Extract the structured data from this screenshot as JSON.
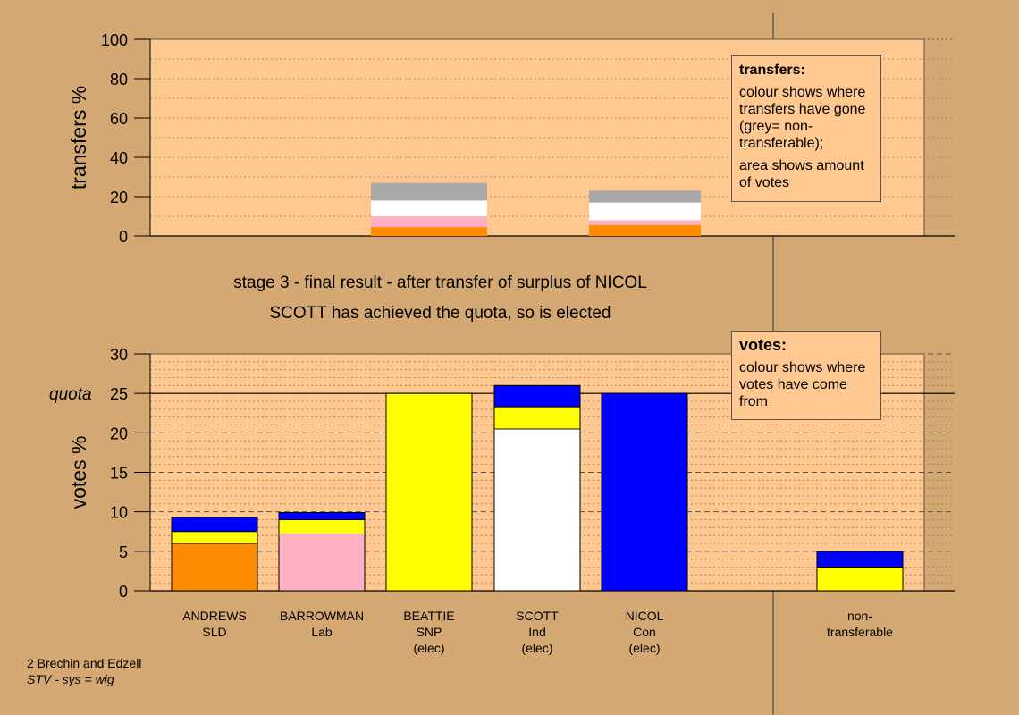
{
  "colors": {
    "background": "#d4a872",
    "plot_bg": "#ffc890",
    "SLD": "#ff8c00",
    "Lab": "#ffb0c0",
    "SNP": "#ffff00",
    "Ind": "#ffffff",
    "Con": "#0000ff",
    "non_transferable": "#a8a8a8"
  },
  "captions": {
    "line1": "stage 3 - final result - after transfer of surplus of NICOL",
    "line2": "SCOTT has achieved the quota, so is elected"
  },
  "legend_transfers": {
    "title": "transfers:",
    "text1": "colour shows where transfers have gone (grey= non-transferable);",
    "text2": "area shows amount of votes"
  },
  "legend_votes": {
    "title": "votes:",
    "text1": "colour shows where votes have come from"
  },
  "footer": {
    "line1": "2 Brechin and Edzell",
    "line2": "STV - sys = wig"
  },
  "candidates": [
    {
      "name": "ANDREWS",
      "party": "SLD",
      "status": ""
    },
    {
      "name": "BARROWMAN",
      "party": "Lab",
      "status": ""
    },
    {
      "name": "BEATTIE",
      "party": "SNP",
      "status": "(elec)"
    },
    {
      "name": "SCOTT",
      "party": "Ind",
      "status": "(elec)"
    },
    {
      "name": "NICOL",
      "party": "Con",
      "status": "(elec)"
    },
    {
      "name": "non-",
      "party": "transferable",
      "status": ""
    }
  ],
  "chart_data": [
    {
      "type": "bar",
      "stacked": true,
      "ylabel": "transfers %",
      "ylim": [
        0,
        100
      ],
      "yticks": [
        0,
        20,
        40,
        60,
        80,
        100
      ],
      "bars": [
        {
          "slot": 2,
          "width": "narrow",
          "segments": [
            {
              "color": "SLD",
              "value": 4.5
            },
            {
              "color": "Lab",
              "value": 5.5
            },
            {
              "color": "Ind",
              "value": 8
            },
            {
              "color": "non_transferable",
              "value": 9
            }
          ]
        },
        {
          "slot": 4,
          "width": "narrow",
          "segments": [
            {
              "color": "SLD",
              "value": 5.5
            },
            {
              "color": "Lab",
              "value": 2.5
            },
            {
              "color": "Ind",
              "value": 9
            },
            {
              "color": "non_transferable",
              "value": 6
            }
          ]
        }
      ]
    },
    {
      "type": "bar",
      "stacked": true,
      "ylabel": "votes %",
      "ylim": [
        0,
        30
      ],
      "yticks": [
        0,
        5,
        10,
        15,
        20,
        25,
        30
      ],
      "quota": 25,
      "quota_label": "quota",
      "bars": [
        {
          "slot": 0,
          "segments": [
            {
              "color": "SLD",
              "value": 6
            },
            {
              "color": "SNP",
              "value": 1.5
            },
            {
              "color": "Con",
              "value": 1.8
            }
          ]
        },
        {
          "slot": 1,
          "segments": [
            {
              "color": "Lab",
              "value": 7.2
            },
            {
              "color": "SNP",
              "value": 1.8
            },
            {
              "color": "Con",
              "value": 0.9
            }
          ]
        },
        {
          "slot": 2,
          "segments": [
            {
              "color": "SNP",
              "value": 25
            }
          ]
        },
        {
          "slot": 3,
          "segments": [
            {
              "color": "Ind",
              "value": 20.5
            },
            {
              "color": "SNP",
              "value": 2.8
            },
            {
              "color": "Con",
              "value": 2.7
            }
          ]
        },
        {
          "slot": 4,
          "segments": [
            {
              "color": "Con",
              "value": 25
            }
          ]
        },
        {
          "slot": 6,
          "segments": [
            {
              "color": "SNP",
              "value": 3
            },
            {
              "color": "Con",
              "value": 2
            }
          ]
        }
      ]
    }
  ]
}
